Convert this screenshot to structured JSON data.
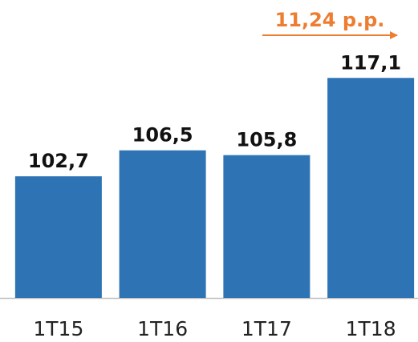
{
  "chart_data": {
    "type": "bar",
    "categories": [
      "1T15",
      "1T16",
      "1T17",
      "1T18"
    ],
    "values": [
      102.7,
      106.5,
      105.8,
      117.1
    ],
    "value_labels": [
      "102,7",
      "106,5",
      "105,8",
      "117,1"
    ],
    "color": "#2e74b5",
    "ylim": [
      84.9,
      128.5
    ],
    "annotation": "11,24 p.p.",
    "annotation_color": "#ed7d31"
  }
}
